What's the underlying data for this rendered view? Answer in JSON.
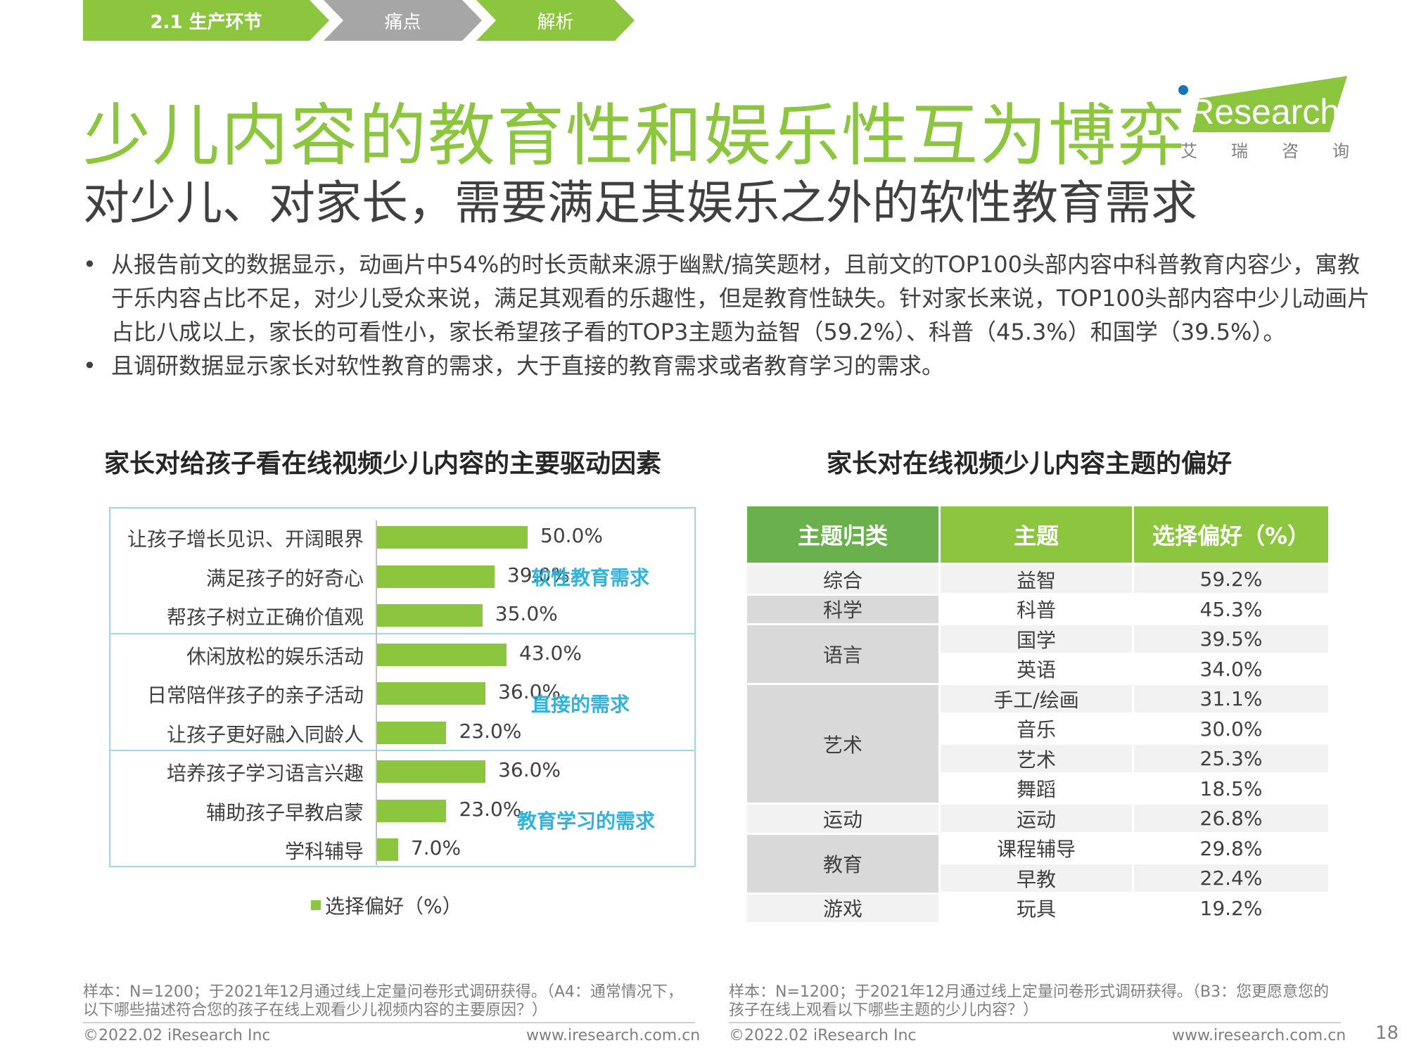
{
  "breadcrumb": [
    "2.1  生产环节",
    "痛点",
    "解析"
  ],
  "title": "少儿内容的教育性和娱乐性互为博弈",
  "subtitle": "对少儿、对家长，需要满足其娱乐之外的软性教育需求",
  "logo": {
    "text": "iResearch",
    "cn": [
      "艾",
      "瑞",
      "咨",
      "询"
    ]
  },
  "bullets": [
    "从报告前文的数据显示，动画片中54%的时长贡献来源于幽默/搞笑题材，且前文的TOP100头部内容中科普教育内容少，寓教于乐内容占比不足，对少儿受众来说，满足其观看的乐趣性，但是教育性缺失。针对家长来说，TOP100头部内容中少儿动画片占比八成以上，家长的可看性小，家长希望孩子看的TOP3主题为益智（59.2%）、科普（45.3%）和国学（39.5%）。",
    "且调研数据显示家长对软性教育的需求，大于直接的教育需求或者教育学习的需求。"
  ],
  "left_title": "家长对给孩子看在线视频少儿内容的主要驱动因素",
  "right_title": "家长对在线视频少儿内容主题的偏好",
  "chart_data": {
    "type": "bar",
    "orientation": "horizontal",
    "categories": [
      "让孩子增长见识、开阔眼界",
      "满足孩子的好奇心",
      "帮孩子树立正确价值观",
      "休闲放松的娱乐活动",
      "日常陪伴孩子的亲子活动",
      "让孩子更好融入同龄人",
      "培养孩子学习语言兴趣",
      "辅助孩子早教启蒙",
      "学科辅导"
    ],
    "values": [
      50.0,
      39.0,
      35.0,
      43.0,
      36.0,
      23.0,
      36.0,
      23.0,
      7.0
    ],
    "value_labels": [
      "50.0%",
      "39.0%",
      "35.0%",
      "43.0%",
      "36.0%",
      "23.0%",
      "36.0%",
      "23.0%",
      "7.0%"
    ],
    "groups": [
      "软性教育需求",
      "直接的需求",
      "教育学习的需求"
    ],
    "legend": "选择偏好（%）",
    "color": "#8cc63f"
  },
  "table": {
    "headers": [
      "主题归类",
      "主题",
      "选择偏好（%）"
    ],
    "categories": [
      {
        "name": "综合",
        "span": 1
      },
      {
        "name": "科学",
        "span": 1
      },
      {
        "name": "语言",
        "span": 2
      },
      {
        "name": "艺术",
        "span": 4
      },
      {
        "name": "运动",
        "span": 1
      },
      {
        "name": "教育",
        "span": 2
      },
      {
        "name": "游戏",
        "span": 1
      }
    ],
    "rows": [
      {
        "topic": "益智",
        "value": "59.2%"
      },
      {
        "topic": "科普",
        "value": "45.3%"
      },
      {
        "topic": "国学",
        "value": "39.5%"
      },
      {
        "topic": "英语",
        "value": "34.0%"
      },
      {
        "topic": "手工/绘画",
        "value": "31.1%"
      },
      {
        "topic": "音乐",
        "value": "30.0%"
      },
      {
        "topic": "艺术",
        "value": "25.3%"
      },
      {
        "topic": "舞蹈",
        "value": "18.5%"
      },
      {
        "topic": "运动",
        "value": "26.8%"
      },
      {
        "topic": "课程辅导",
        "value": "29.8%"
      },
      {
        "topic": "早教",
        "value": "22.4%"
      },
      {
        "topic": "玩具",
        "value": "19.2%"
      }
    ]
  },
  "notes": {
    "left": "样本：N=1200；于2021年12月通过线上定量问卷形式调研获得。（A4：通常情况下，以下哪些描述符合您的孩子在线上观看少儿视频内容的主要原因？）",
    "right": "样本：N=1200；于2021年12月通过线上定量问卷形式调研获得。（B3：您更愿意您的孩子在线上观看以下哪些主题的少儿内容？）"
  },
  "footer": {
    "copyright_left": "©2022.02 iResearch Inc",
    "url_left": "www.iresearch.com.cn",
    "copyright_right": "©2022.02 iResearch Inc",
    "url_right": "www.iresearch.com.cn",
    "page": "18"
  },
  "colors": {
    "green": "#8cc63f",
    "dark_green": "#6ab04c",
    "gray": "#a6a6a6",
    "cyan": "#2fb3da"
  }
}
